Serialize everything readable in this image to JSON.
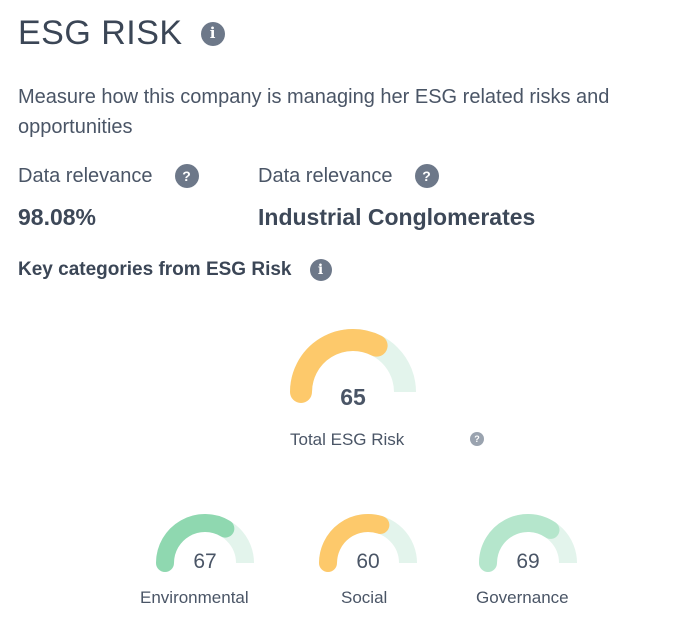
{
  "header": {
    "title": "ESG RISK",
    "info_icon": "info-icon"
  },
  "description": "Measure how this company is managing her ESG related risks and opportunities",
  "meta": [
    {
      "label": "Data relevance",
      "value": "98.08%",
      "icon": "question-icon"
    },
    {
      "label": "Data relevance",
      "value": "Industrial Conglomerates",
      "icon": "question-icon"
    }
  ],
  "categories_heading": "Key categories from ESG Risk",
  "total": {
    "label": "Total ESG Risk",
    "value": "65",
    "level": 0.65,
    "color": "#fdc96b",
    "track_color": "#e3f4ec"
  },
  "gauges": [
    {
      "label": "Environmental",
      "value": "67",
      "level": 0.67,
      "color": "#8fd8b0",
      "track_color": "#e3f4ec"
    },
    {
      "label": "Social",
      "value": "60",
      "level": 0.6,
      "color": "#fdc96b",
      "track_color": "#e3f4ec"
    },
    {
      "label": "Governance",
      "value": "69",
      "level": 0.69,
      "color": "#b5e6cc",
      "track_color": "#e3f4ec"
    }
  ]
}
